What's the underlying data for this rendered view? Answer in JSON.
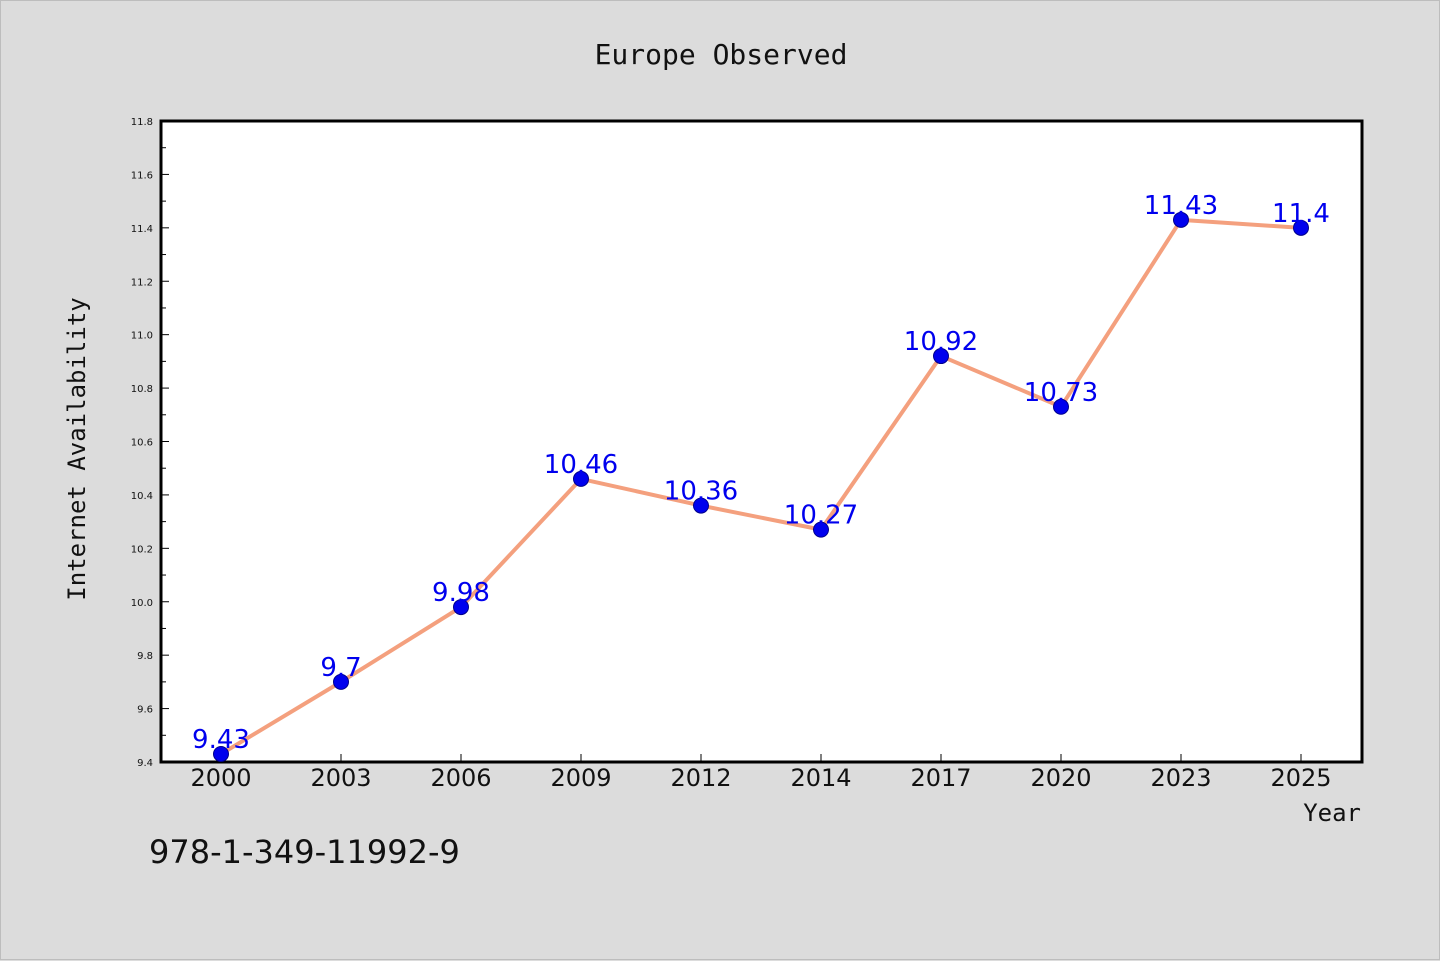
{
  "chart_data": {
    "type": "line",
    "title": "Europe Observed",
    "xlabel": "Year",
    "ylabel": "Internet Availability",
    "categories": [
      "2000",
      "2003",
      "2006",
      "2009",
      "2012",
      "2014",
      "2017",
      "2020",
      "2023",
      "2025"
    ],
    "series": [
      {
        "values": [
          9.43,
          9.7,
          9.98,
          10.46,
          10.36,
          10.27,
          10.92,
          10.73,
          11.43,
          11.4
        ]
      }
    ],
    "data_labels": [
      "9.43",
      "9.7",
      "9.98",
      "10.46",
      "10.36",
      "10.27",
      "10.92",
      "10.73",
      "11.43",
      "11.4"
    ],
    "ylim": [
      9.4,
      11.8
    ],
    "yticks": [
      "9.4",
      "9.6",
      "9.8",
      "10.0",
      "10.2",
      "10.4",
      "10.6",
      "10.8",
      "11.0",
      "11.2",
      "11.4",
      "11.6",
      "11.8"
    ],
    "grid": false,
    "legend": "none",
    "line_color": "#f4a07e",
    "marker_color": "#0000ee"
  },
  "footer": {
    "code": "978-1-349-11992-9"
  }
}
